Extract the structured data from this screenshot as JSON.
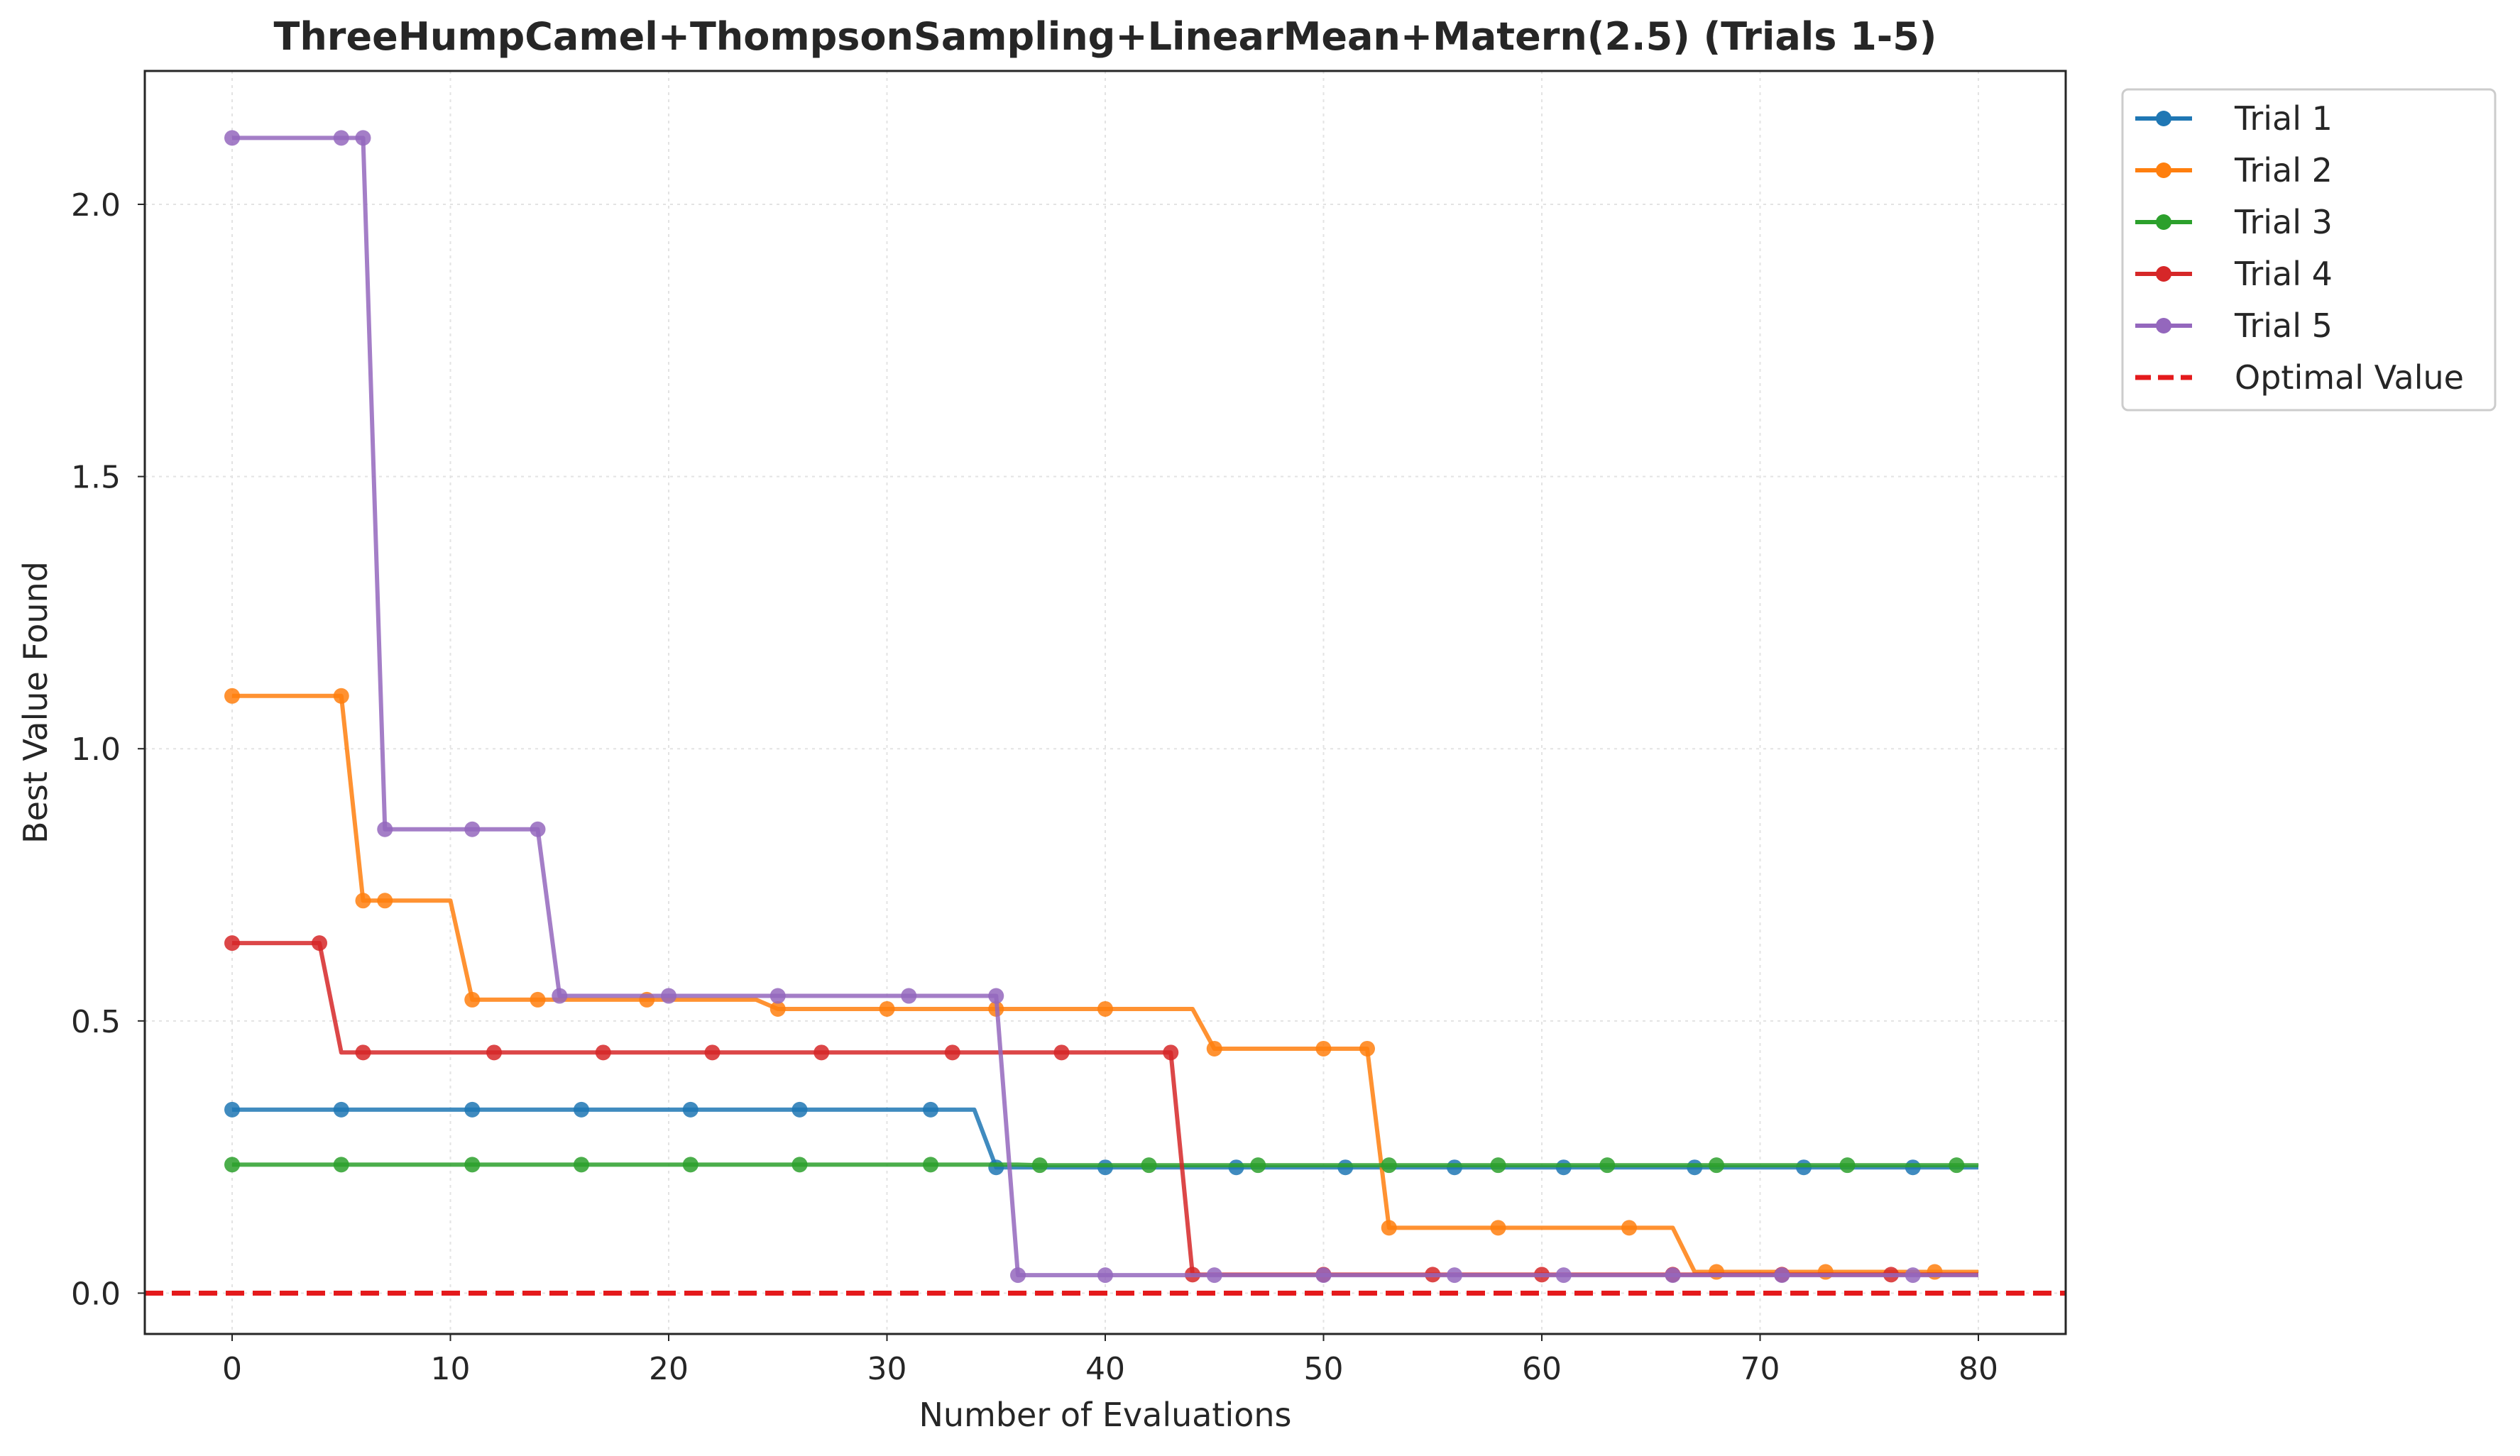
{
  "chart_data": {
    "type": "line",
    "title": "ThreeHumpCamel+ThompsonSampling+LinearMean+Matern(2.5) (Trials 1-5)",
    "xlabel": "Number of Evaluations",
    "ylabel": "Best Value Found",
    "xlim": [
      -4,
      84
    ],
    "ylim": [
      -0.075,
      2.245
    ],
    "xticks": [
      0,
      10,
      20,
      30,
      40,
      50,
      60,
      70,
      80
    ],
    "yticks": [
      0.0,
      0.5,
      1.0,
      1.5,
      2.0
    ],
    "xtick_labels": [
      "0",
      "10",
      "20",
      "30",
      "40",
      "50",
      "60",
      "70",
      "80"
    ],
    "ytick_labels": [
      "0.0",
      "0.5",
      "1.0",
      "1.5",
      "2.0"
    ],
    "grid": true,
    "legend_position": "outside-top-right",
    "series": [
      {
        "name": "Trial 1",
        "color": "#1f77b4",
        "steps": [
          [
            0,
            0.337
          ],
          [
            35,
            0.231
          ]
        ],
        "markers": [
          0,
          5,
          11,
          16,
          21,
          26,
          32,
          35,
          40,
          46,
          51,
          56,
          61,
          67,
          72,
          77
        ]
      },
      {
        "name": "Trial 2",
        "color": "#ff7f0e",
        "steps": [
          [
            0,
            1.097
          ],
          [
            6,
            0.721
          ],
          [
            11,
            0.539
          ],
          [
            25,
            0.522
          ],
          [
            45,
            0.449
          ],
          [
            53,
            0.12
          ],
          [
            67,
            0.039
          ]
        ],
        "markers": [
          0,
          5,
          6,
          7,
          11,
          14,
          19,
          25,
          30,
          35,
          40,
          45,
          50,
          52,
          53,
          58,
          64,
          68,
          73,
          78
        ]
      },
      {
        "name": "Trial 3",
        "color": "#2ca02c",
        "steps": [
          [
            0,
            0.236
          ],
          [
            37,
            0.235
          ]
        ],
        "markers": [
          0,
          5,
          11,
          16,
          21,
          26,
          32,
          37,
          42,
          47,
          53,
          58,
          63,
          68,
          74,
          79
        ]
      },
      {
        "name": "Trial 4",
        "color": "#d62728",
        "steps": [
          [
            0,
            0.643
          ],
          [
            5,
            0.442
          ],
          [
            44,
            0.034
          ]
        ],
        "markers": [
          0,
          4,
          6,
          12,
          17,
          22,
          27,
          33,
          38,
          43,
          44,
          50,
          55,
          60,
          66,
          71,
          76
        ]
      },
      {
        "name": "Trial 5",
        "color": "#9467bd",
        "steps": [
          [
            0,
            2.122
          ],
          [
            7,
            0.852
          ],
          [
            15,
            0.546
          ],
          [
            36,
            0.033
          ]
        ],
        "markers": [
          0,
          5,
          6,
          7,
          11,
          14,
          15,
          20,
          25,
          31,
          35,
          36,
          40,
          45,
          50,
          56,
          61,
          66,
          71,
          77
        ]
      }
    ],
    "reference_line": {
      "name": "Optimal Value",
      "y": 0.0,
      "color": "#e41a1c",
      "style": "dashed"
    }
  }
}
